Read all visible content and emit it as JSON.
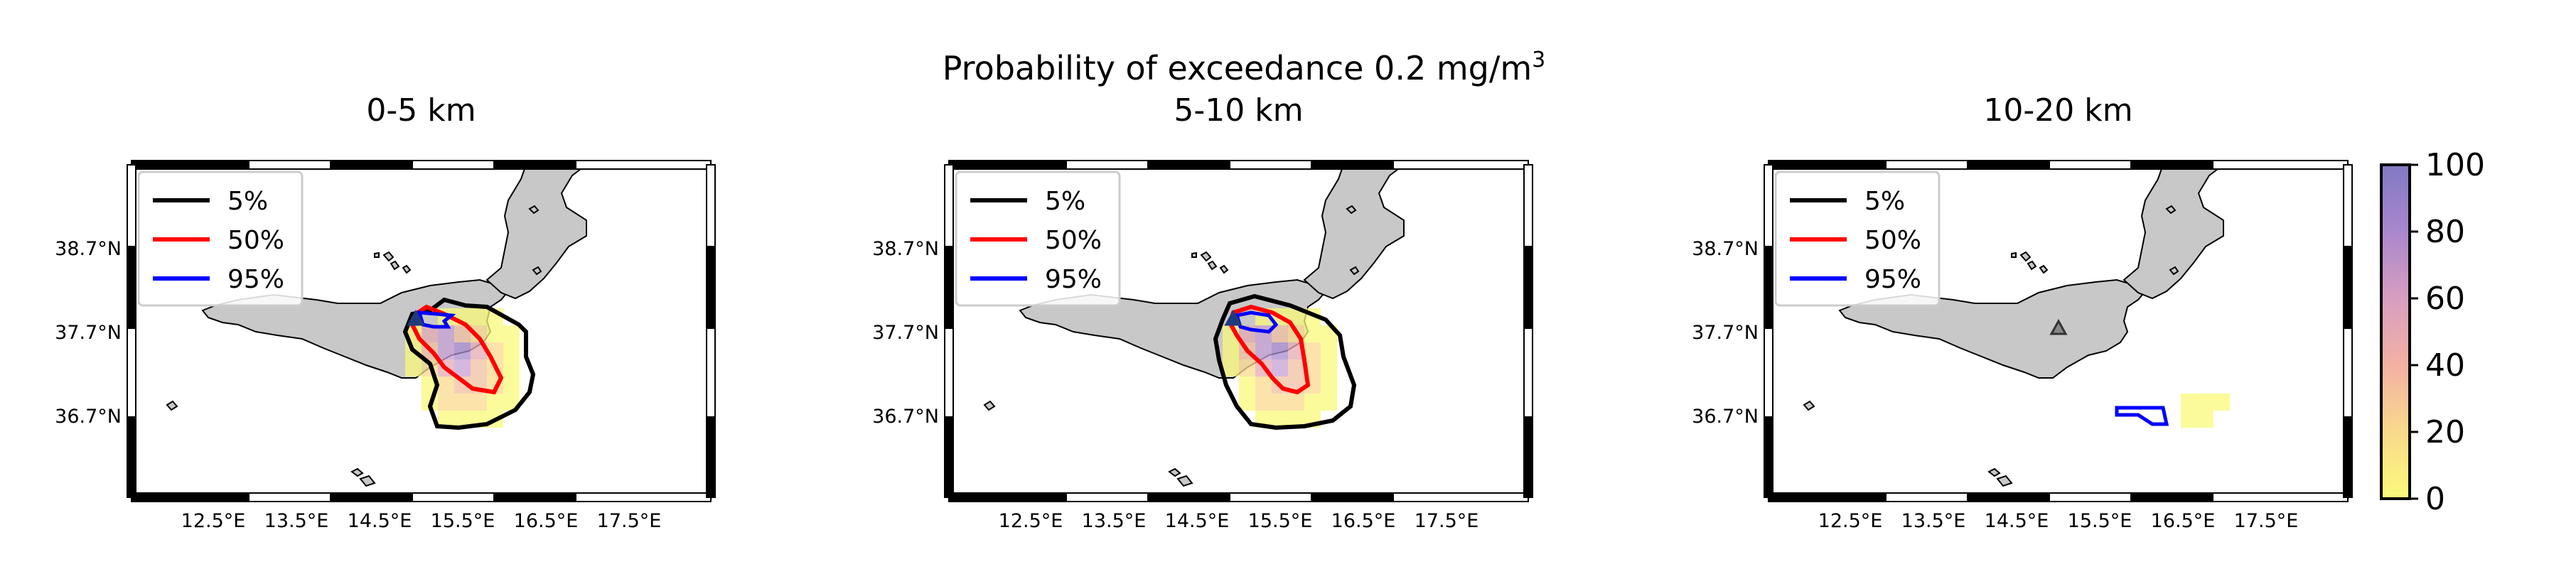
{
  "figure": {
    "suptitle_main": "Probability of exceedance 0.2 mg/m",
    "suptitle_sup": "3"
  },
  "panels": [
    {
      "title": "0-5 km",
      "legend": [
        "5%",
        "50%",
        "95%"
      ],
      "xticks": [
        "12.5°E",
        "13.5°E",
        "14.5°E",
        "15.5°E",
        "16.5°E",
        "17.5°E"
      ],
      "yticks": [
        "38.7°N",
        "37.7°N",
        "36.7°N"
      ]
    },
    {
      "title": "5-10 km",
      "legend": [
        "5%",
        "50%",
        "95%"
      ],
      "xticks": [
        "12.5°E",
        "13.5°E",
        "14.5°E",
        "15.5°E",
        "16.5°E",
        "17.5°E"
      ],
      "yticks": [
        "38.7°N",
        "37.7°N",
        "36.7°N"
      ]
    },
    {
      "title": "10-20 km",
      "legend": [
        "5%",
        "50%",
        "95%"
      ],
      "xticks": [
        "12.5°E",
        "13.5°E",
        "14.5°E",
        "15.5°E",
        "16.5°E",
        "17.5°E"
      ],
      "yticks": [
        "38.7°N",
        "37.7°N",
        "36.7°N"
      ]
    }
  ],
  "colorbar": {
    "ticks": [
      "100",
      "80",
      "60",
      "40",
      "20",
      "0"
    ]
  },
  "colors": {
    "land": "#c8c8c8",
    "contour_5": "#000000",
    "contour_50": "#ff0000",
    "contour_95": "#0000ff"
  }
}
